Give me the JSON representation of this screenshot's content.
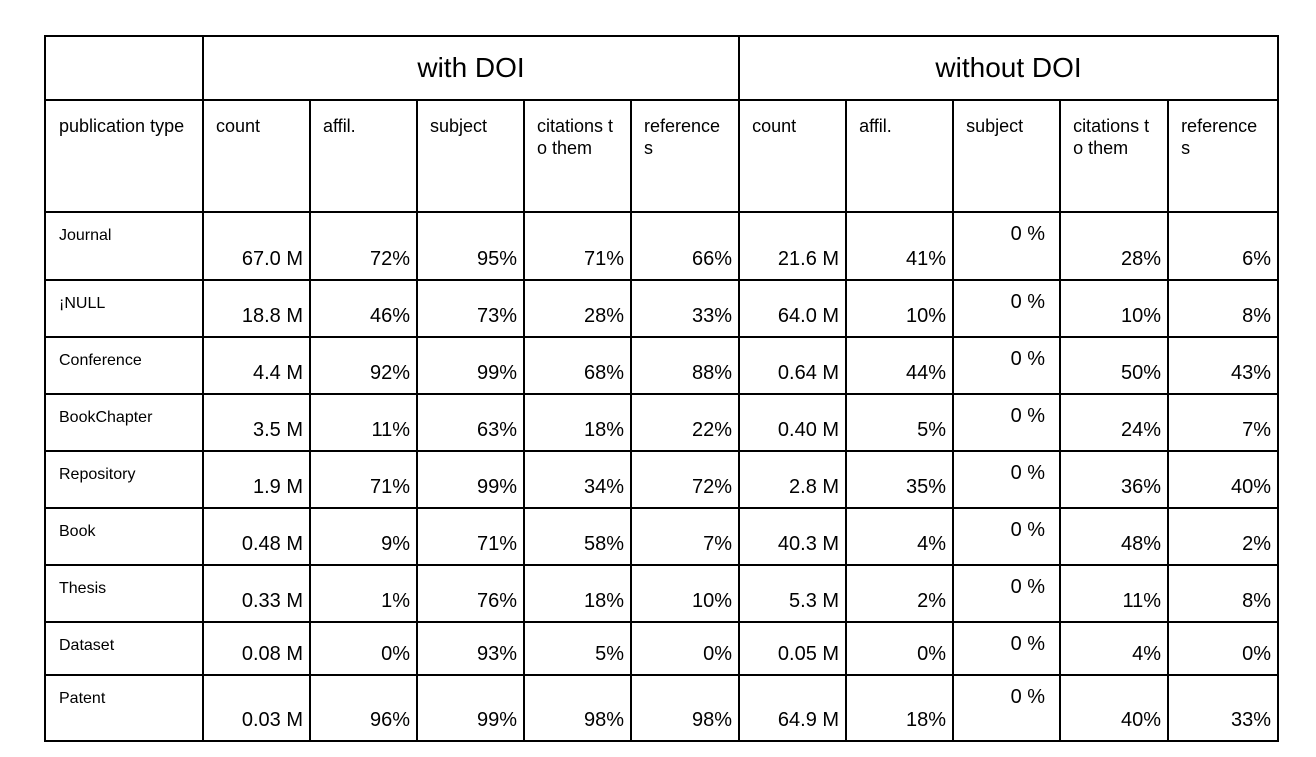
{
  "table": {
    "group_headers": [
      "",
      "with DOI",
      "without DOI"
    ],
    "column_headers": [
      "publication type",
      "count",
      "affil.",
      "subject",
      "citations to them",
      "reference s",
      "count",
      "affil.",
      "subject",
      "citations to them",
      "reference s"
    ],
    "rows": [
      {
        "type": "Journal",
        "with": [
          "67.0 M",
          "72%",
          "95%",
          "71%",
          "66%"
        ],
        "without": [
          "21.6 M",
          "41%",
          "0 %",
          "28%",
          "6%"
        ]
      },
      {
        "type": "¡NULL",
        "with": [
          "18.8 M",
          "46%",
          "73%",
          "28%",
          "33%"
        ],
        "without": [
          "64.0 M",
          "10%",
          "0 %",
          "10%",
          "8%"
        ]
      },
      {
        "type": "Conference",
        "with": [
          "4.4 M",
          "92%",
          "99%",
          "68%",
          "88%"
        ],
        "without": [
          "0.64 M",
          "44%",
          "0 %",
          "50%",
          "43%"
        ]
      },
      {
        "type": "BookChapter",
        "with": [
          "3.5 M",
          "11%",
          "63%",
          "18%",
          "22%"
        ],
        "without": [
          "0.40 M",
          "5%",
          "0 %",
          "24%",
          "7%"
        ]
      },
      {
        "type": "Repository",
        "with": [
          "1.9 M",
          "71%",
          "99%",
          "34%",
          "72%"
        ],
        "without": [
          "2.8 M",
          "35%",
          "0 %",
          "36%",
          "40%"
        ]
      },
      {
        "type": "Book",
        "with": [
          "0.48 M",
          "9%",
          "71%",
          "58%",
          "7%"
        ],
        "without": [
          "40.3 M",
          "4%",
          "0 %",
          "48%",
          "2%"
        ]
      },
      {
        "type": "Thesis",
        "with": [
          "0.33 M",
          "1%",
          "76%",
          "18%",
          "10%"
        ],
        "without": [
          "5.3 M",
          "2%",
          "0 %",
          "11%",
          "8%"
        ]
      },
      {
        "type": "Dataset",
        "with": [
          "0.08 M",
          "0%",
          "93%",
          "5%",
          "0%"
        ],
        "without": [
          "0.05 M",
          "0%",
          "0 %",
          "4%",
          "0%"
        ]
      },
      {
        "type": "Patent",
        "with": [
          "0.03 M",
          "96%",
          "99%",
          "98%",
          "98%"
        ],
        "without": [
          "64.9 M",
          "18%",
          "0 %",
          "40%",
          "33%"
        ]
      }
    ]
  }
}
